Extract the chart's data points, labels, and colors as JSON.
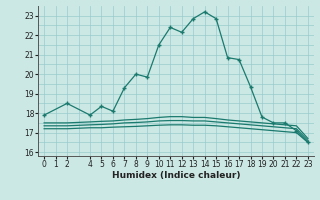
{
  "xlabel": "Humidex (Indice chaleur)",
  "background_color": "#cce8e4",
  "grid_color": "#99cccc",
  "line_color": "#1a7a6e",
  "xlim": [
    -0.5,
    23.5
  ],
  "ylim": [
    15.8,
    23.5
  ],
  "yticks": [
    16,
    17,
    18,
    19,
    20,
    21,
    22,
    23
  ],
  "xticks": [
    0,
    1,
    2,
    4,
    5,
    6,
    7,
    8,
    9,
    10,
    11,
    12,
    13,
    14,
    15,
    16,
    17,
    18,
    19,
    20,
    21,
    22,
    23
  ],
  "line1_x": [
    0,
    2,
    4,
    5,
    6,
    7,
    8,
    9,
    10,
    11,
    12,
    13,
    14,
    15,
    16,
    17,
    18,
    19,
    20,
    21,
    22,
    23
  ],
  "line1_y": [
    17.9,
    18.5,
    17.9,
    18.35,
    18.1,
    19.3,
    20.0,
    19.85,
    21.5,
    22.4,
    22.15,
    22.85,
    23.2,
    22.85,
    20.85,
    20.75,
    19.35,
    17.8,
    17.5,
    17.5,
    17.1,
    16.5
  ],
  "line2_x": [
    0,
    2,
    4,
    5,
    6,
    7,
    8,
    9,
    10,
    11,
    12,
    13,
    14,
    15,
    16,
    17,
    18,
    19,
    20,
    21,
    22,
    23
  ],
  "line2_y": [
    17.2,
    17.2,
    17.25,
    17.25,
    17.28,
    17.3,
    17.32,
    17.35,
    17.38,
    17.4,
    17.4,
    17.38,
    17.38,
    17.35,
    17.3,
    17.25,
    17.2,
    17.15,
    17.1,
    17.05,
    17.0,
    16.5
  ],
  "line3_x": [
    0,
    2,
    4,
    5,
    6,
    7,
    8,
    9,
    10,
    11,
    12,
    13,
    14,
    15,
    16,
    17,
    18,
    19,
    20,
    21,
    22,
    23
  ],
  "line3_y": [
    17.35,
    17.35,
    17.4,
    17.42,
    17.45,
    17.5,
    17.52,
    17.55,
    17.6,
    17.62,
    17.62,
    17.6,
    17.6,
    17.55,
    17.5,
    17.45,
    17.4,
    17.35,
    17.3,
    17.25,
    17.2,
    16.6
  ],
  "line4_x": [
    0,
    2,
    4,
    5,
    6,
    7,
    8,
    9,
    10,
    11,
    12,
    13,
    14,
    15,
    16,
    17,
    18,
    19,
    20,
    21,
    22,
    23
  ],
  "line4_y": [
    17.5,
    17.5,
    17.55,
    17.58,
    17.6,
    17.65,
    17.68,
    17.72,
    17.78,
    17.82,
    17.82,
    17.78,
    17.78,
    17.72,
    17.65,
    17.6,
    17.55,
    17.5,
    17.45,
    17.4,
    17.35,
    16.7
  ],
  "marker": "+",
  "markersize": 3.5,
  "linewidth": 0.9
}
